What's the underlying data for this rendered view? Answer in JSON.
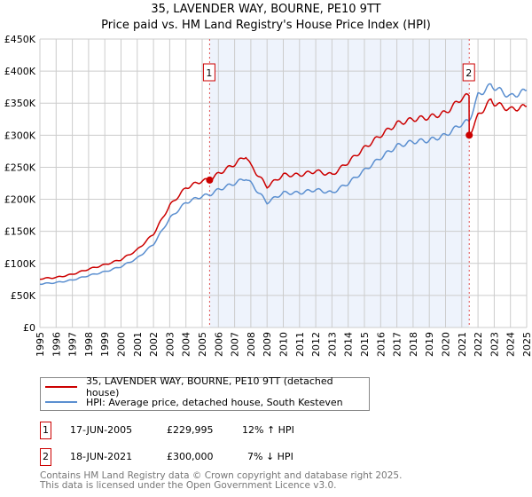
{
  "chart_data": {
    "type": "line",
    "title": "35, LAVENDER WAY, BOURNE, PE10 9TT",
    "subtitle": "Price paid vs. HM Land Registry's House Price Index (HPI)",
    "xlim": [
      1995,
      2025
    ],
    "ylim": [
      0,
      450000
    ],
    "x_ticks": [
      "1995",
      "1996",
      "1997",
      "1998",
      "1999",
      "2000",
      "2001",
      "2002",
      "2003",
      "2004",
      "2005",
      "2006",
      "2007",
      "2008",
      "2009",
      "2010",
      "2011",
      "2012",
      "2013",
      "2014",
      "2015",
      "2016",
      "2017",
      "2018",
      "2019",
      "2020",
      "2021",
      "2022",
      "2023",
      "2024",
      "2025"
    ],
    "y_ticks": [
      {
        "v": 0,
        "label": "£0"
      },
      {
        "v": 50000,
        "label": "£50K"
      },
      {
        "v": 100000,
        "label": "£100K"
      },
      {
        "v": 150000,
        "label": "£150K"
      },
      {
        "v": 200000,
        "label": "£200K"
      },
      {
        "v": 250000,
        "label": "£250K"
      },
      {
        "v": 300000,
        "label": "£300K"
      },
      {
        "v": 350000,
        "label": "£350K"
      },
      {
        "v": 400000,
        "label": "£400K"
      },
      {
        "v": 450000,
        "label": "£450K"
      }
    ],
    "grid": true,
    "x": [
      1995,
      1996,
      1997,
      1998,
      1999,
      2000,
      2001,
      2002,
      2003,
      2004,
      2005,
      2005.46,
      2006,
      2007,
      2007.7,
      2008,
      2009,
      2010,
      2011,
      2012,
      2013,
      2014,
      2015,
      2016,
      2017,
      2018,
      2019,
      2020,
      2021,
      2021.45,
      2021.46,
      2022,
      2022.8,
      2023,
      2024,
      2025
    ],
    "series": [
      {
        "name": "35, LAVENDER WAY, BOURNE, PE10 9TT (detached house)",
        "color": "#cc0000",
        "values": [
          76000,
          78000,
          83000,
          91000,
          98000,
          106000,
          121000,
          146000,
          190000,
          218000,
          229000,
          229995,
          240000,
          255000,
          268000,
          252000,
          220000,
          238000,
          238000,
          244000,
          238000,
          258000,
          280000,
          300000,
          318000,
          325000,
          328000,
          335000,
          358000,
          362000,
          300000,
          330000,
          355000,
          350000,
          340000,
          345000
        ]
      },
      {
        "name": "HPI: Average price, detached house, South Kesteven",
        "color": "#5b8fd0",
        "values": [
          68000,
          70000,
          74000,
          81000,
          87000,
          95000,
          108000,
          130000,
          170000,
          195000,
          205000,
          207000,
          215000,
          225000,
          233000,
          225000,
          195000,
          210000,
          210000,
          215000,
          210000,
          225000,
          245000,
          265000,
          283000,
          290000,
          292000,
          300000,
          318000,
          322000,
          323000,
          362000,
          378000,
          375000,
          360000,
          370000
        ]
      }
    ],
    "sales": [
      {
        "id": "1",
        "x": 2005.46,
        "date": "17-JUN-2005",
        "price_value": 229995,
        "price": "£229,995",
        "hpi": "12% ↑ HPI"
      },
      {
        "id": "2",
        "x": 2021.46,
        "date": "18-JUN-2021",
        "price_value": 300000,
        "price": "£300,000",
        "hpi": "7% ↓ HPI"
      }
    ],
    "shade_color": "#eef3fc"
  },
  "footer": [
    "Contains HM Land Registry data © Crown copyright and database right 2025.",
    "This data is licensed under the Open Government Licence v3.0."
  ]
}
